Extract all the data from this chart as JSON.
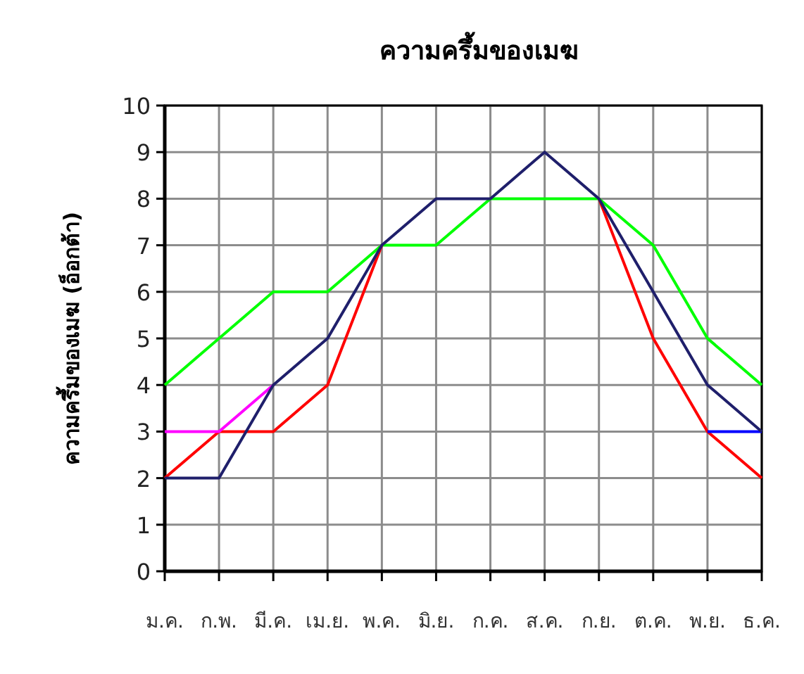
{
  "chart_data": {
    "type": "line",
    "title": "ความครึ้มของเมฆ",
    "ylabel": "ความครึ้มของเมฆ (อ็อกต้า)",
    "categories": [
      "ม.ค.",
      "ก.พ.",
      "มี.ค.",
      "เม.ย.",
      "พ.ค.",
      "มิ.ย.",
      "ก.ค.",
      "ส.ค.",
      "ก.ย.",
      "ต.ค.",
      "พ.ย.",
      "ธ.ค."
    ],
    "series": [
      {
        "color": "#00ff00",
        "values": [
          4,
          5,
          6,
          6,
          7,
          7,
          8,
          8,
          8,
          7,
          5,
          4
        ]
      },
      {
        "color": "#ff0000",
        "values": [
          2,
          3,
          3,
          4,
          7,
          null,
          null,
          null,
          8,
          5,
          3,
          2
        ]
      },
      {
        "color": "#ff00ff",
        "values": [
          3,
          3,
          4,
          null,
          null,
          null,
          null,
          null,
          null,
          null,
          null,
          null
        ]
      },
      {
        "color": "#0000ff",
        "values": [
          null,
          null,
          null,
          null,
          null,
          null,
          null,
          null,
          null,
          null,
          3,
          3
        ]
      },
      {
        "color": "#1f1f6b",
        "values": [
          2,
          2,
          4,
          5,
          7,
          8,
          8,
          9,
          8,
          6,
          4,
          3
        ]
      }
    ],
    "ylim": [
      0,
      10
    ],
    "yticks": [
      0,
      1,
      2,
      3,
      4,
      5,
      6,
      7,
      8,
      9,
      10
    ],
    "grid": true,
    "marker": "none",
    "line_style": "solid"
  }
}
